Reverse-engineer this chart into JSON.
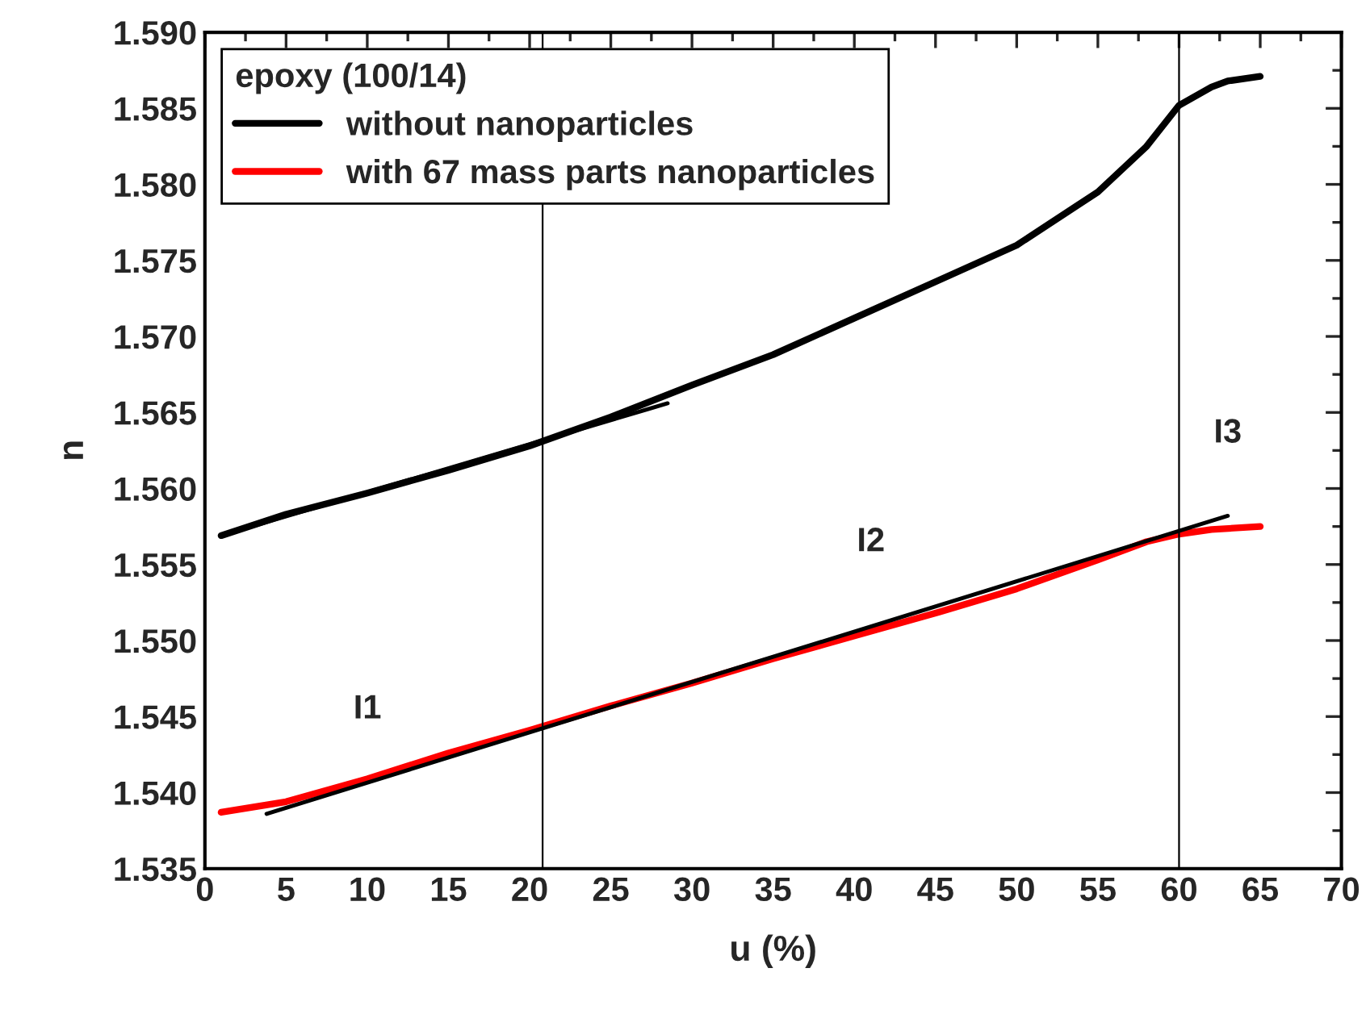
{
  "chart_data": {
    "type": "line",
    "xlabel": "u (%)",
    "ylabel": "n",
    "legend_title": "epoxy (100/14)",
    "legend": "top left",
    "grid": false,
    "marker": "none",
    "line_style": "solid",
    "xlim": [
      0,
      70
    ],
    "xticks": [
      0,
      5,
      10,
      15,
      20,
      25,
      30,
      35,
      40,
      45,
      50,
      55,
      60,
      65,
      70
    ],
    "ylim": [
      1.535,
      1.59
    ],
    "yticks": [
      {
        "value": 1.535,
        "label": "1.535"
      },
      {
        "value": 1.54,
        "label": "1.540"
      },
      {
        "value": 1.545,
        "label": "1.545"
      },
      {
        "value": 1.55,
        "label": "1.550"
      },
      {
        "value": 1.555,
        "label": "1.555"
      },
      {
        "value": 1.56,
        "label": "1.560"
      },
      {
        "value": 1.565,
        "label": "1.565"
      },
      {
        "value": 1.57,
        "label": "1.570"
      },
      {
        "value": 1.575,
        "label": "1.575"
      },
      {
        "value": 1.58,
        "label": "1.580"
      },
      {
        "value": 1.585,
        "label": "1.585"
      },
      {
        "value": 1.59,
        "label": "1.590"
      }
    ],
    "series": [
      {
        "name": "without nanoparticles",
        "color": "#000000",
        "x": [
          1,
          5,
          10,
          15,
          20,
          25,
          30,
          35,
          40,
          45,
          50,
          55,
          58,
          60,
          62,
          63,
          65
        ],
        "values": [
          1.5569,
          1.5583,
          1.5597,
          1.5612,
          1.5628,
          1.5647,
          1.5668,
          1.5688,
          1.5712,
          1.5736,
          1.576,
          1.5795,
          1.5825,
          1.5852,
          1.5864,
          1.5868,
          1.5871
        ]
      },
      {
        "name": "with 67 mass parts nanoparticles",
        "color": "#ff0000",
        "x": [
          1,
          5,
          10,
          15,
          20,
          25,
          30,
          35,
          40,
          45,
          50,
          55,
          58,
          60,
          62,
          65
        ],
        "values": [
          1.5387,
          1.5394,
          1.5409,
          1.5426,
          1.5441,
          1.5457,
          1.5472,
          1.5488,
          1.5503,
          1.5518,
          1.5534,
          1.5553,
          1.5565,
          1.557,
          1.5573,
          1.5575
        ]
      },
      {
        "type": "line",
        "color": "#000000",
        "x": [
          1,
          28.5
        ],
        "values": [
          1.5569,
          1.5656
        ]
      },
      {
        "type": "line",
        "color": "#000000",
        "x": [
          3.8,
          63
        ],
        "values": [
          1.5386,
          1.5582
        ]
      }
    ],
    "ref_lines": [
      {
        "axis": "x",
        "value": 20.8,
        "color": "#000000"
      },
      {
        "axis": "x",
        "value": 60,
        "color": "#000000"
      }
    ],
    "annotations": [
      "I1",
      "I2",
      "I3"
    ]
  }
}
